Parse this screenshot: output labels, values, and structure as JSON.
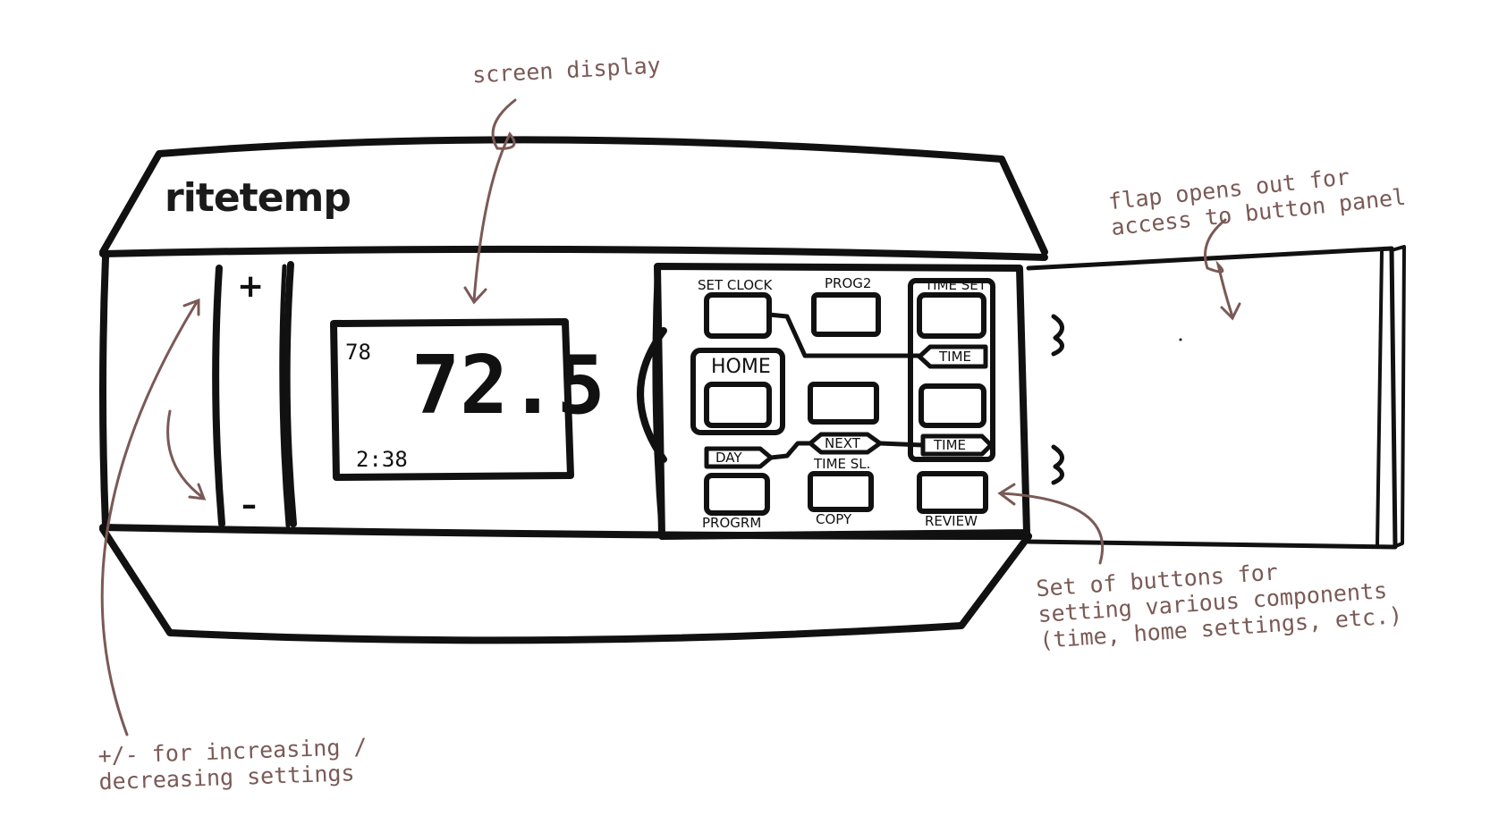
{
  "annotations": {
    "screen": "screen display",
    "flap": [
      "flap opens out for",
      "access to button panel"
    ],
    "buttons": [
      "Set of buttons for",
      "setting various components",
      "(time, home settings, etc.)"
    ],
    "plusminus": [
      "+/- for increasing /",
      "decreasing settings"
    ]
  },
  "device": {
    "brand": "ritetemp",
    "plus_symbol": "+",
    "minus_symbol": "–",
    "lcd": {
      "main_temp": "72.5",
      "set_temp": "78",
      "clock": "2:38"
    },
    "buttons": {
      "set_clock": "SET CLOCK",
      "prog2": "PROG2",
      "time_set": "TIME SET",
      "home": "HOME",
      "time_1": "TIME",
      "time_2": "TIME",
      "day": "DAY",
      "next": "NEXT",
      "time_sl": "TIME SL.",
      "progrm": "PROGRM",
      "copy": "COPY",
      "review": "REVIEW"
    }
  },
  "colors": {
    "ink": "#111111",
    "annotation": "#7a5a56",
    "paper": "#ffffff"
  }
}
